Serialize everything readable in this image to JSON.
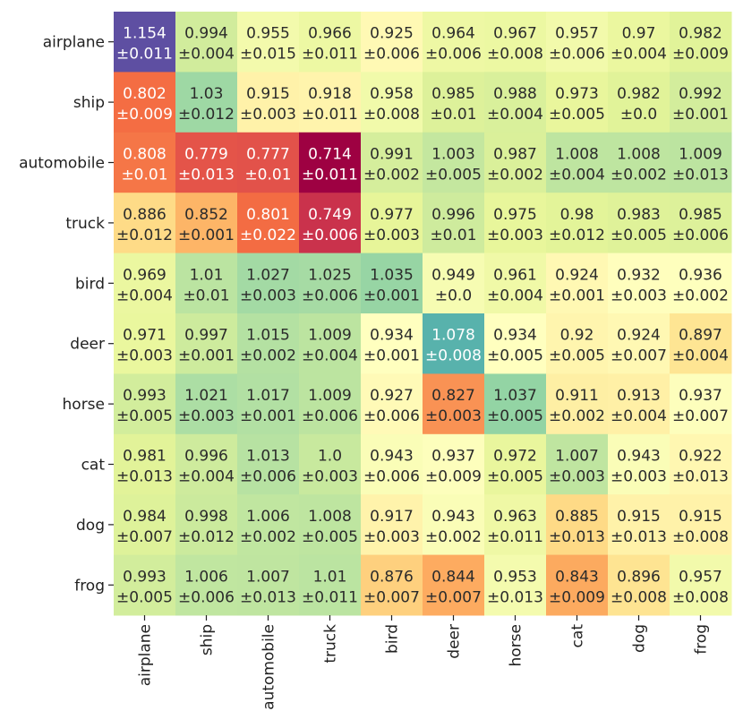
{
  "chart_data": {
    "type": "heatmap",
    "title": "",
    "xlabel": "",
    "ylabel": "",
    "rows": [
      "airplane",
      "ship",
      "automobile",
      "truck",
      "bird",
      "deer",
      "horse",
      "cat",
      "dog",
      "frog"
    ],
    "columns": [
      "airplane",
      "ship",
      "automobile",
      "truck",
      "bird",
      "deer",
      "horse",
      "cat",
      "dog",
      "frog"
    ],
    "value_labels": [
      [
        "1.154",
        "0.994",
        "0.955",
        "0.966",
        "0.925",
        "0.964",
        "0.967",
        "0.957",
        "0.97",
        "0.982"
      ],
      [
        "0.802",
        "1.03",
        "0.915",
        "0.918",
        "0.958",
        "0.985",
        "0.988",
        "0.973",
        "0.982",
        "0.992"
      ],
      [
        "0.808",
        "0.779",
        "0.777",
        "0.714",
        "0.991",
        "1.003",
        "0.987",
        "1.008",
        "1.008",
        "1.009"
      ],
      [
        "0.886",
        "0.852",
        "0.801",
        "0.749",
        "0.977",
        "0.996",
        "0.975",
        "0.98",
        "0.983",
        "0.985"
      ],
      [
        "0.969",
        "1.01",
        "1.027",
        "1.025",
        "1.035",
        "0.949",
        "0.961",
        "0.924",
        "0.932",
        "0.936"
      ],
      [
        "0.971",
        "0.997",
        "1.015",
        "1.009",
        "0.934",
        "1.078",
        "0.934",
        "0.92",
        "0.924",
        "0.897"
      ],
      [
        "0.993",
        "1.021",
        "1.017",
        "1.009",
        "0.927",
        "0.827",
        "1.037",
        "0.911",
        "0.913",
        "0.937"
      ],
      [
        "0.981",
        "0.996",
        "1.013",
        "1.0",
        "0.943",
        "0.937",
        "0.972",
        "1.007",
        "0.943",
        "0.922"
      ],
      [
        "0.984",
        "0.998",
        "1.006",
        "1.008",
        "0.917",
        "0.943",
        "0.963",
        "0.885",
        "0.915",
        "0.915"
      ],
      [
        "0.993",
        "1.006",
        "1.007",
        "1.01",
        "0.876",
        "0.844",
        "0.953",
        "0.843",
        "0.896",
        "0.957"
      ]
    ],
    "error_labels": [
      [
        "±0.011",
        "±0.004",
        "±0.015",
        "±0.011",
        "±0.006",
        "±0.006",
        "±0.008",
        "±0.006",
        "±0.004",
        "±0.009"
      ],
      [
        "±0.009",
        "±0.012",
        "±0.003",
        "±0.011",
        "±0.008",
        "±0.01",
        "±0.004",
        "±0.005",
        "±0.0",
        "±0.001"
      ],
      [
        "±0.01",
        "±0.013",
        "±0.01",
        "±0.011",
        "±0.002",
        "±0.005",
        "±0.002",
        "±0.004",
        "±0.002",
        "±0.013"
      ],
      [
        "±0.012",
        "±0.001",
        "±0.022",
        "±0.006",
        "±0.003",
        "±0.01",
        "±0.003",
        "±0.012",
        "±0.005",
        "±0.006"
      ],
      [
        "±0.004",
        "±0.01",
        "±0.003",
        "±0.006",
        "±0.001",
        "±0.0",
        "±0.004",
        "±0.001",
        "±0.003",
        "±0.002"
      ],
      [
        "±0.003",
        "±0.001",
        "±0.002",
        "±0.004",
        "±0.001",
        "±0.008",
        "±0.005",
        "±0.005",
        "±0.007",
        "±0.004"
      ],
      [
        "±0.005",
        "±0.003",
        "±0.001",
        "±0.006",
        "±0.006",
        "±0.003",
        "±0.005",
        "±0.002",
        "±0.004",
        "±0.007"
      ],
      [
        "±0.013",
        "±0.004",
        "±0.006",
        "±0.003",
        "±0.006",
        "±0.009",
        "±0.005",
        "±0.003",
        "±0.003",
        "±0.013"
      ],
      [
        "±0.007",
        "±0.012",
        "±0.002",
        "±0.005",
        "±0.003",
        "±0.002",
        "±0.011",
        "±0.013",
        "±0.013",
        "±0.008"
      ],
      [
        "±0.005",
        "±0.006",
        "±0.013",
        "±0.011",
        "±0.007",
        "±0.007",
        "±0.013",
        "±0.009",
        "±0.008",
        "±0.008"
      ]
    ],
    "colormap": "Spectral",
    "color_range": [
      0.714,
      1.154
    ],
    "legend": "none"
  },
  "colors": {
    "light_text": "#ffffff",
    "dark_text": "#2b2b2b",
    "tick_color": "#222222"
  }
}
